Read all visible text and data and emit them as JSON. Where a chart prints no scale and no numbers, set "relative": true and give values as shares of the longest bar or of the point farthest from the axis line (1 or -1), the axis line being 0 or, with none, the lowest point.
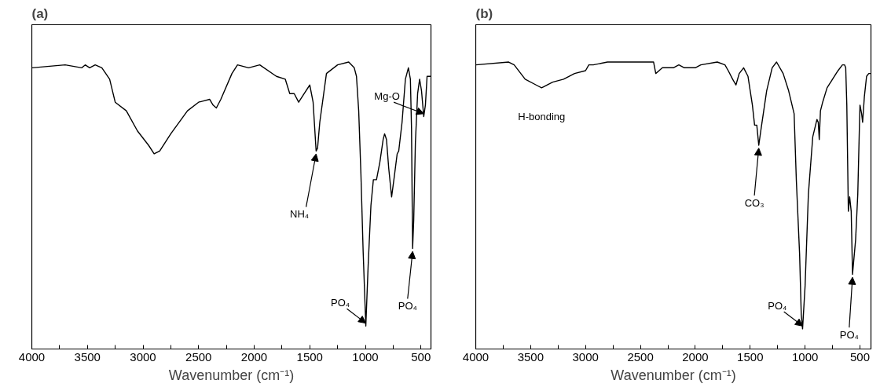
{
  "chart_data": [
    {
      "type": "line",
      "title": "(a)",
      "xlabel": "Wavenumber (cm⁻¹)",
      "relative": true,
      "xlim": [
        4000,
        410
      ],
      "xticks": [
        4000,
        {
          "value": 3750,
          "label": null
        },
        3500,
        {
          "value": 3250,
          "label": null
        },
        3000,
        {
          "value": 2750,
          "label": null
        },
        2500,
        {
          "value": 2250,
          "label": null
        },
        2000,
        {
          "value": 1750,
          "label": null
        },
        1500,
        {
          "value": 1250,
          "label": null
        },
        1000,
        {
          "value": 750,
          "label": null
        },
        500
      ],
      "tick_labels": "x",
      "grid": false,
      "marker": "none",
      "line_style": "solid",
      "x": [
        4000,
        3700,
        3550,
        3520,
        3480,
        3430,
        3370,
        3300,
        3250,
        3150,
        3050,
        2950,
        2900,
        2850,
        2750,
        2600,
        2500,
        2400,
        2370,
        2340,
        2300,
        2200,
        2150,
        2050,
        1950,
        1800,
        1720,
        1680,
        1640,
        1600,
        1550,
        1500,
        1470,
        1443,
        1430,
        1410,
        1350,
        1250,
        1150,
        1100,
        1080,
        1060,
        1040,
        1020,
        996,
        975,
        950,
        928,
        900,
        870,
        840,
        827,
        810,
        790,
        764,
        740,
        714,
        700,
        670,
        640,
        613,
        595,
        585,
        575,
        565,
        550,
        530,
        512,
        495,
        475,
        460,
        445,
        425,
        412
      ],
      "series": [
        {
          "color": "#000000",
          "values": [
            0.98,
            0.99,
            0.98,
            0.99,
            0.98,
            0.99,
            0.98,
            0.94,
            0.86,
            0.83,
            0.76,
            0.71,
            0.68,
            0.69,
            0.75,
            0.83,
            0.86,
            0.87,
            0.85,
            0.84,
            0.87,
            0.96,
            0.99,
            0.98,
            0.99,
            0.95,
            0.94,
            0.89,
            0.89,
            0.86,
            0.89,
            0.92,
            0.86,
            0.69,
            0.7,
            0.79,
            0.96,
            0.99,
            1.0,
            0.98,
            0.95,
            0.83,
            0.61,
            0.34,
            0.08,
            0.29,
            0.5,
            0.59,
            0.59,
            0.65,
            0.73,
            0.75,
            0.73,
            0.63,
            0.53,
            0.6,
            0.68,
            0.69,
            0.79,
            0.94,
            0.98,
            0.94,
            0.77,
            0.35,
            0.45,
            0.72,
            0.89,
            0.94,
            0.9,
            0.81,
            0.85,
            0.95,
            0.95,
            0.95
          ]
        }
      ],
      "annotations": [
        {
          "text": "NH₄",
          "x": 1443,
          "y": 0.69
        },
        {
          "text": "PO₄",
          "x": 996,
          "y": 0.08
        },
        {
          "text": "PO₄",
          "x": 575,
          "y": 0.35
        },
        {
          "text": "Mg-O",
          "x": 475,
          "y": 0.81
        }
      ]
    },
    {
      "type": "line",
      "title": "(b)",
      "xlabel": "Wavenumber (cm⁻¹)",
      "relative": true,
      "xlim": [
        4000,
        400
      ],
      "xticks": [
        4000,
        {
          "value": 3750,
          "label": null
        },
        3500,
        {
          "value": 3250,
          "label": null
        },
        3000,
        {
          "value": 2750,
          "label": null
        },
        2500,
        {
          "value": 2250,
          "label": null
        },
        2000,
        {
          "value": 1750,
          "label": null
        },
        1500,
        {
          "value": 1250,
          "label": null
        },
        1000,
        {
          "value": 750,
          "label": null
        },
        500
      ],
      "tick_labels": "x",
      "grid": false,
      "marker": "none",
      "line_style": "solid",
      "x": [
        4000,
        3700,
        3650,
        3550,
        3450,
        3400,
        3300,
        3200,
        3100,
        3000,
        2970,
        2930,
        2800,
        2600,
        2400,
        2380,
        2360,
        2330,
        2300,
        2200,
        2150,
        2100,
        2000,
        1950,
        1800,
        1730,
        1700,
        1660,
        1630,
        1600,
        1560,
        1520,
        1480,
        1460,
        1440,
        1422,
        1400,
        1350,
        1300,
        1260,
        1200,
        1150,
        1100,
        1080,
        1050,
        1035,
        1023,
        1000,
        970,
        930,
        892,
        880,
        871,
        860,
        840,
        800,
        750,
        700,
        660,
        640,
        630,
        620,
        612,
        606,
        594,
        580,
        568,
        540,
        520,
        505,
        500,
        485,
        476,
        460,
        440,
        420,
        404
      ],
      "series": [
        {
          "color": "#000000",
          "values": [
            0.99,
            1.0,
            0.99,
            0.94,
            0.92,
            0.91,
            0.93,
            0.94,
            0.96,
            0.97,
            0.99,
            0.99,
            1.0,
            1.0,
            1.0,
            1.0,
            0.96,
            0.97,
            0.98,
            0.98,
            0.99,
            0.98,
            0.98,
            0.99,
            1.0,
            0.99,
            0.97,
            0.94,
            0.92,
            0.96,
            0.98,
            0.95,
            0.85,
            0.78,
            0.78,
            0.71,
            0.77,
            0.9,
            0.98,
            1.0,
            0.96,
            0.9,
            0.82,
            0.59,
            0.33,
            0.12,
            0.07,
            0.22,
            0.54,
            0.74,
            0.8,
            0.79,
            0.73,
            0.83,
            0.86,
            0.91,
            0.94,
            0.97,
            0.99,
            0.99,
            0.98,
            0.85,
            0.64,
            0.48,
            0.53,
            0.48,
            0.26,
            0.38,
            0.54,
            0.78,
            0.85,
            0.82,
            0.79,
            0.88,
            0.95,
            0.96,
            0.96
          ]
        }
      ],
      "annotations": [
        {
          "text": "H-bonding",
          "x": 3400,
          "y": 0.91
        },
        {
          "text": "CO₃",
          "x": 1422,
          "y": 0.71
        },
        {
          "text": "PO₄",
          "x": 1023,
          "y": 0.07
        },
        {
          "text": "PO₄",
          "x": 568,
          "y": 0.26
        }
      ]
    }
  ]
}
